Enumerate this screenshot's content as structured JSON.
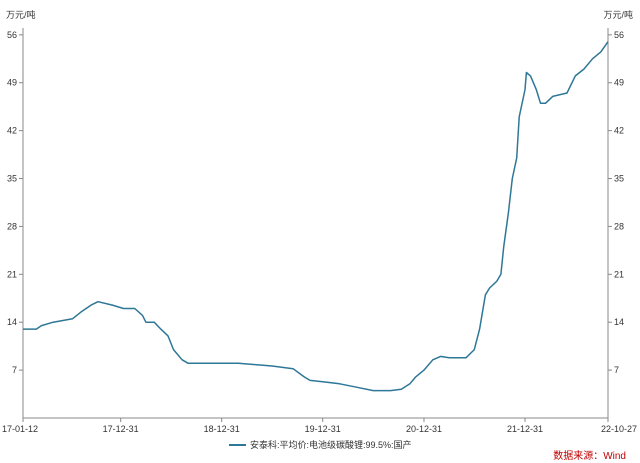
{
  "chart_data": {
    "type": "line",
    "y_unit_left": "万元/吨",
    "y_unit_right": "万元/吨",
    "yticks": [
      7,
      14,
      21,
      28,
      35,
      42,
      49,
      56
    ],
    "ylim": [
      0,
      57
    ],
    "xticks": [
      "17-01-12",
      "17-12-31",
      "18-12-31",
      "19-12-31",
      "20-12-31",
      "21-12-31",
      "22-10-27"
    ],
    "grid": false,
    "legend_position": "bottom-center",
    "series": [
      {
        "name": "安泰科:平均价:电池级碳酸锂:99.5%:国产",
        "color": "#2E7796",
        "points": [
          [
            "17-01-12",
            13.0
          ],
          [
            "17-03-01",
            13.0
          ],
          [
            "17-03-20",
            13.5
          ],
          [
            "17-05-01",
            14.0
          ],
          [
            "17-07-10",
            14.5
          ],
          [
            "17-08-10",
            15.5
          ],
          [
            "17-09-15",
            16.5
          ],
          [
            "17-10-10",
            17.0
          ],
          [
            "17-12-01",
            16.5
          ],
          [
            "18-01-10",
            16.0
          ],
          [
            "18-02-20",
            16.0
          ],
          [
            "18-03-20",
            15.0
          ],
          [
            "18-04-01",
            14.0
          ],
          [
            "18-05-01",
            14.0
          ],
          [
            "18-05-25",
            13.0
          ],
          [
            "18-06-20",
            12.0
          ],
          [
            "18-07-10",
            10.0
          ],
          [
            "18-08-10",
            8.5
          ],
          [
            "18-09-01",
            8.0
          ],
          [
            "18-12-31",
            8.0
          ],
          [
            "19-03-01",
            8.0
          ],
          [
            "19-05-01",
            7.8
          ],
          [
            "19-07-01",
            7.6
          ],
          [
            "19-09-15",
            7.2
          ],
          [
            "19-10-25",
            6.0
          ],
          [
            "19-11-15",
            5.5
          ],
          [
            "19-12-31",
            5.3
          ],
          [
            "20-03-01",
            5.0
          ],
          [
            "20-05-01",
            4.5
          ],
          [
            "20-07-01",
            4.0
          ],
          [
            "20-09-01",
            4.0
          ],
          [
            "20-10-10",
            4.2
          ],
          [
            "20-11-10",
            5.0
          ],
          [
            "20-12-01",
            6.0
          ],
          [
            "20-12-31",
            7.0
          ],
          [
            "21-02-01",
            8.5
          ],
          [
            "21-03-01",
            9.0
          ],
          [
            "21-04-01",
            8.8
          ],
          [
            "21-06-01",
            8.8
          ],
          [
            "21-07-01",
            10.0
          ],
          [
            "21-07-20",
            13.0
          ],
          [
            "21-08-10",
            18.0
          ],
          [
            "21-08-25",
            19.0
          ],
          [
            "21-09-20",
            20.0
          ],
          [
            "21-10-05",
            21.0
          ],
          [
            "21-10-15",
            25.0
          ],
          [
            "21-11-01",
            30.0
          ],
          [
            "21-11-15",
            35.0
          ],
          [
            "21-12-01",
            38.0
          ],
          [
            "21-12-10",
            44.0
          ],
          [
            "21-12-31",
            48.0
          ],
          [
            "22-01-05",
            50.5
          ],
          [
            "22-01-20",
            50.0
          ],
          [
            "22-02-10",
            48.0
          ],
          [
            "22-02-25",
            46.0
          ],
          [
            "22-03-15",
            46.0
          ],
          [
            "22-04-10",
            47.0
          ],
          [
            "22-06-01",
            47.5
          ],
          [
            "22-07-01",
            50.0
          ],
          [
            "22-08-01",
            51.0
          ],
          [
            "22-09-01",
            52.5
          ],
          [
            "22-10-01",
            53.5
          ],
          [
            "22-10-27",
            55.0
          ]
        ]
      }
    ]
  },
  "source_label": "数据来源：Wind",
  "colors": {
    "line": "#2E7796",
    "axis": "#888888",
    "source": "#C00000"
  }
}
